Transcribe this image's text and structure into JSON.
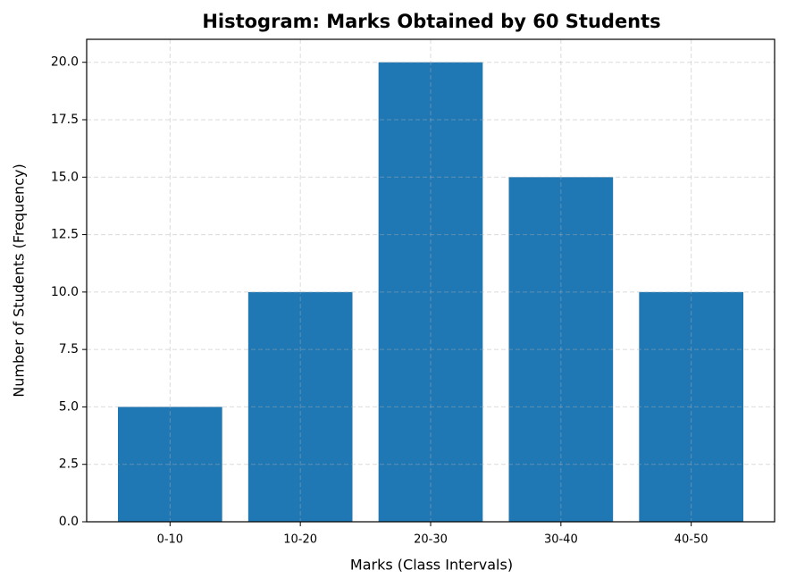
{
  "chart_data": {
    "type": "bar",
    "title": "Histogram: Marks Obtained by 60 Students",
    "x_label": "Marks (Class Intervals)",
    "y_label": "Number of Students (Frequency)",
    "categories": [
      "0-10",
      "10-20",
      "20-30",
      "30-40",
      "40-50"
    ],
    "values": [
      5,
      10,
      20,
      15,
      10
    ],
    "color": "#1f77b4",
    "ylim": [
      0,
      21
    ],
    "yticks": [
      {
        "value": 0,
        "label": "0.0"
      },
      2.5,
      {
        "value": 5,
        "label": "5.0"
      },
      7.5,
      {
        "value": 10,
        "label": "10.0"
      },
      12.5,
      {
        "value": 15,
        "label": "15.0"
      },
      17.5,
      {
        "value": 20,
        "label": "20.0"
      }
    ],
    "grid": true
  }
}
